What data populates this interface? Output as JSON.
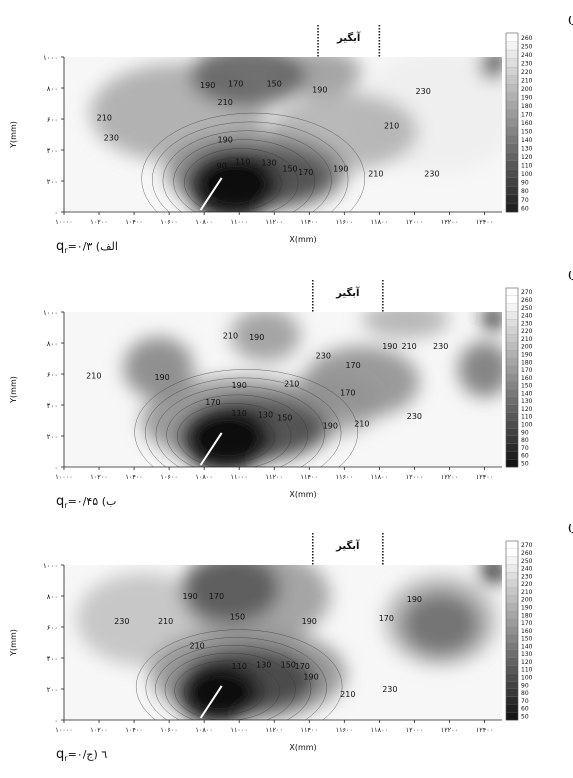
{
  "chart_data": [
    {
      "type": "heatmap",
      "basin_label": "آبگیر",
      "colorbar_title": "ارتفاع رسوبات (میلی‌متر)",
      "colorbar_ticks": [
        260,
        250,
        240,
        230,
        220,
        210,
        200,
        190,
        180,
        170,
        160,
        150,
        140,
        130,
        120,
        110,
        100,
        90,
        80,
        70,
        60
      ],
      "xlabel": "X(mm)",
      "ylabel": "Y(mm)",
      "x_ticks": [
        "۱۰۰۰۰",
        "۱۰۲۰۰",
        "۱۰۴۰۰",
        "۱۰۶۰۰",
        "۱۰۸۰۰",
        "۱۱۰۰۰",
        "۱۱۲۰۰",
        "۱۱۴۰۰",
        "۱۱۶۰۰",
        "۱۱۸۰۰",
        "۱۲۰۰۰",
        "۱۲۲۰۰",
        "۱۲۴۰۰"
      ],
      "y_ticks": [
        "۱۰۰۰",
        "۸۰۰",
        "۶۰۰",
        "۴۰۰",
        "۲۰۰",
        "۰"
      ],
      "xlim": [
        10000,
        12500
      ],
      "ylim": [
        0,
        1000
      ],
      "basin_range_x": [
        11450,
        11800
      ],
      "caption": "q",
      "caption_sub": "r",
      "caption_rest": "=۰/۳ (الف",
      "contour_labels": [
        {
          "x": 10820,
          "y": 800,
          "text": "190"
        },
        {
          "x": 10980,
          "y": 810,
          "text": "170"
        },
        {
          "x": 11200,
          "y": 810,
          "text": "150"
        },
        {
          "x": 10920,
          "y": 690,
          "text": "210"
        },
        {
          "x": 11460,
          "y": 770,
          "text": "190"
        },
        {
          "x": 12050,
          "y": 760,
          "text": "230"
        },
        {
          "x": 10230,
          "y": 590,
          "text": "210"
        },
        {
          "x": 10270,
          "y": 460,
          "text": "230"
        },
        {
          "x": 11870,
          "y": 540,
          "text": "210"
        },
        {
          "x": 10920,
          "y": 450,
          "text": "190"
        },
        {
          "x": 10900,
          "y": 280,
          "text": "90"
        },
        {
          "x": 11020,
          "y": 305,
          "text": "110"
        },
        {
          "x": 11170,
          "y": 300,
          "text": "130"
        },
        {
          "x": 11290,
          "y": 260,
          "text": "150"
        },
        {
          "x": 11380,
          "y": 240,
          "text": "170"
        },
        {
          "x": 11580,
          "y": 260,
          "text": "190"
        },
        {
          "x": 11780,
          "y": 230,
          "text": "210"
        },
        {
          "x": 12100,
          "y": 230,
          "text": "230"
        }
      ],
      "blobs": [
        {
          "x": 10960,
          "y": 170,
          "rx": 260,
          "ry": 230,
          "v": 40
        },
        {
          "x": 11150,
          "y": 230,
          "rx": 380,
          "ry": 180,
          "v": 100
        },
        {
          "x": 11100,
          "y": 260,
          "rx": 520,
          "ry": 260,
          "v": 150
        },
        {
          "x": 11050,
          "y": 880,
          "rx": 330,
          "ry": 200,
          "v": 120
        },
        {
          "x": 11450,
          "y": 900,
          "rx": 250,
          "ry": 150,
          "v": 170
        },
        {
          "x": 10650,
          "y": 640,
          "rx": 500,
          "ry": 320,
          "v": 185
        },
        {
          "x": 11600,
          "y": 520,
          "rx": 420,
          "ry": 250,
          "v": 190
        },
        {
          "x": 12450,
          "y": 950,
          "rx": 70,
          "ry": 90,
          "v": 50
        },
        {
          "x": 12150,
          "y": 650,
          "rx": 450,
          "ry": 400,
          "v": 245
        }
      ]
    },
    {
      "type": "heatmap",
      "basin_label": "آبگیر",
      "colorbar_title": "ارتفاع رسوبات (میلی‌متر)",
      "colorbar_ticks": [
        270,
        260,
        250,
        240,
        230,
        220,
        210,
        200,
        190,
        180,
        170,
        160,
        150,
        140,
        130,
        120,
        110,
        100,
        90,
        80,
        70,
        60,
        50
      ],
      "xlabel": "X(mm)",
      "ylabel": "Y(mm)",
      "x_ticks": [
        "۱۰۰۰۰",
        "۱۰۲۰۰",
        "۱۰۴۰۰",
        "۱۰۶۰۰",
        "۱۰۸۰۰",
        "۱۱۰۰۰",
        "۱۱۲۰۰",
        "۱۱۴۰۰",
        "۱۱۶۰۰",
        "۱۱۸۰۰",
        "۱۲۰۰۰",
        "۱۲۲۰۰",
        "۱۲۴۰۰"
      ],
      "y_ticks": [
        "۱۰۰۰",
        "۸۰۰",
        "۶۰۰",
        "۴۰۰",
        "۲۰۰",
        "۰"
      ],
      "xlim": [
        10000,
        12500
      ],
      "ylim": [
        0,
        1000
      ],
      "basin_range_x": [
        11420,
        11820
      ],
      "caption": "q",
      "caption_sub": "r",
      "caption_rest": "=۰/۴۵ (ب",
      "contour_labels": [
        {
          "x": 10950,
          "y": 830,
          "text": "210"
        },
        {
          "x": 11100,
          "y": 820,
          "text": "190"
        },
        {
          "x": 10170,
          "y": 570,
          "text": "210"
        },
        {
          "x": 10560,
          "y": 560,
          "text": "190"
        },
        {
          "x": 11480,
          "y": 700,
          "text": "230"
        },
        {
          "x": 11650,
          "y": 640,
          "text": "170"
        },
        {
          "x": 11860,
          "y": 760,
          "text": "190"
        },
        {
          "x": 11970,
          "y": 760,
          "text": "210"
        },
        {
          "x": 12150,
          "y": 760,
          "text": "230"
        },
        {
          "x": 11000,
          "y": 510,
          "text": "190"
        },
        {
          "x": 11300,
          "y": 520,
          "text": "210"
        },
        {
          "x": 11620,
          "y": 460,
          "text": "170"
        },
        {
          "x": 10850,
          "y": 400,
          "text": "170"
        },
        {
          "x": 11000,
          "y": 330,
          "text": "110"
        },
        {
          "x": 11150,
          "y": 320,
          "text": "130"
        },
        {
          "x": 11260,
          "y": 300,
          "text": "150"
        },
        {
          "x": 10880,
          "y": 240,
          "text": "90"
        },
        {
          "x": 11520,
          "y": 250,
          "text": "190"
        },
        {
          "x": 11700,
          "y": 260,
          "text": "210"
        },
        {
          "x": 12000,
          "y": 310,
          "text": "230"
        }
      ],
      "blobs": [
        {
          "x": 10920,
          "y": 180,
          "rx": 260,
          "ry": 220,
          "v": 40
        },
        {
          "x": 11100,
          "y": 250,
          "rx": 400,
          "ry": 200,
          "v": 100
        },
        {
          "x": 11000,
          "y": 300,
          "rx": 560,
          "ry": 280,
          "v": 160
        },
        {
          "x": 10540,
          "y": 640,
          "rx": 200,
          "ry": 200,
          "v": 150
        },
        {
          "x": 11150,
          "y": 850,
          "rx": 200,
          "ry": 170,
          "v": 170
        },
        {
          "x": 11700,
          "y": 550,
          "rx": 330,
          "ry": 230,
          "v": 160
        },
        {
          "x": 11500,
          "y": 400,
          "rx": 300,
          "ry": 200,
          "v": 185
        },
        {
          "x": 12400,
          "y": 630,
          "rx": 150,
          "ry": 180,
          "v": 140
        },
        {
          "x": 12450,
          "y": 960,
          "rx": 60,
          "ry": 80,
          "v": 50
        },
        {
          "x": 11950,
          "y": 950,
          "rx": 250,
          "ry": 120,
          "v": 190
        }
      ]
    },
    {
      "type": "heatmap",
      "basin_label": "آبگیر",
      "colorbar_title": "ارتفاع رسوبات (میلی‌متر)",
      "colorbar_ticks": [
        270,
        260,
        250,
        240,
        230,
        220,
        210,
        200,
        190,
        180,
        170,
        160,
        150,
        140,
        130,
        120,
        110,
        100,
        90,
        80,
        70,
        60,
        50
      ],
      "xlabel": "X(mm)",
      "ylabel": "Y(mm)",
      "x_ticks": [
        "۱۰۰۰۰",
        "۱۰۲۰۰",
        "۱۰۴۰۰",
        "۱۰۶۰۰",
        "۱۰۸۰۰",
        "۱۱۰۰۰",
        "۱۱۲۰۰",
        "۱۱۴۰۰",
        "۱۱۶۰۰",
        "۱۱۸۰۰",
        "۱۲۰۰۰",
        "۱۲۲۰۰",
        "۱۲۴۰۰"
      ],
      "y_ticks": [
        "۱۰۰۰",
        "۸۰۰",
        "۶۰۰",
        "۴۰۰",
        "۲۰۰",
        "۰"
      ],
      "xlim": [
        10000,
        12500
      ],
      "ylim": [
        0,
        1000
      ],
      "basin_range_x": [
        11420,
        11820
      ],
      "caption": "q",
      "caption_sub": "r",
      "caption_rest": "=۰/٦ (ج",
      "contour_labels": [
        {
          "x": 10720,
          "y": 780,
          "text": "190"
        },
        {
          "x": 10870,
          "y": 780,
          "text": "170"
        },
        {
          "x": 10990,
          "y": 650,
          "text": "150"
        },
        {
          "x": 10330,
          "y": 620,
          "text": "230"
        },
        {
          "x": 10580,
          "y": 620,
          "text": "210"
        },
        {
          "x": 10760,
          "y": 460,
          "text": "210"
        },
        {
          "x": 11400,
          "y": 620,
          "text": "190"
        },
        {
          "x": 12000,
          "y": 760,
          "text": "190"
        },
        {
          "x": 11840,
          "y": 640,
          "text": "170"
        },
        {
          "x": 11000,
          "y": 330,
          "text": "110"
        },
        {
          "x": 11140,
          "y": 340,
          "text": "130"
        },
        {
          "x": 11280,
          "y": 340,
          "text": "150"
        },
        {
          "x": 11360,
          "y": 330,
          "text": "170"
        },
        {
          "x": 11410,
          "y": 260,
          "text": "190"
        },
        {
          "x": 10860,
          "y": 240,
          "text": "90"
        },
        {
          "x": 11620,
          "y": 150,
          "text": "210"
        },
        {
          "x": 11860,
          "y": 180,
          "text": "230"
        }
      ],
      "blobs": [
        {
          "x": 10880,
          "y": 170,
          "rx": 240,
          "ry": 200,
          "v": 40
        },
        {
          "x": 11060,
          "y": 260,
          "rx": 380,
          "ry": 210,
          "v": 90
        },
        {
          "x": 11050,
          "y": 300,
          "rx": 560,
          "ry": 300,
          "v": 160
        },
        {
          "x": 10950,
          "y": 850,
          "rx": 280,
          "ry": 220,
          "v": 110
        },
        {
          "x": 11100,
          "y": 800,
          "rx": 420,
          "ry": 300,
          "v": 170
        },
        {
          "x": 12150,
          "y": 620,
          "rx": 220,
          "ry": 200,
          "v": 130
        },
        {
          "x": 12150,
          "y": 640,
          "rx": 320,
          "ry": 290,
          "v": 190
        },
        {
          "x": 12450,
          "y": 960,
          "rx": 70,
          "ry": 90,
          "v": 50
        },
        {
          "x": 10450,
          "y": 650,
          "rx": 380,
          "ry": 300,
          "v": 205
        }
      ]
    }
  ]
}
